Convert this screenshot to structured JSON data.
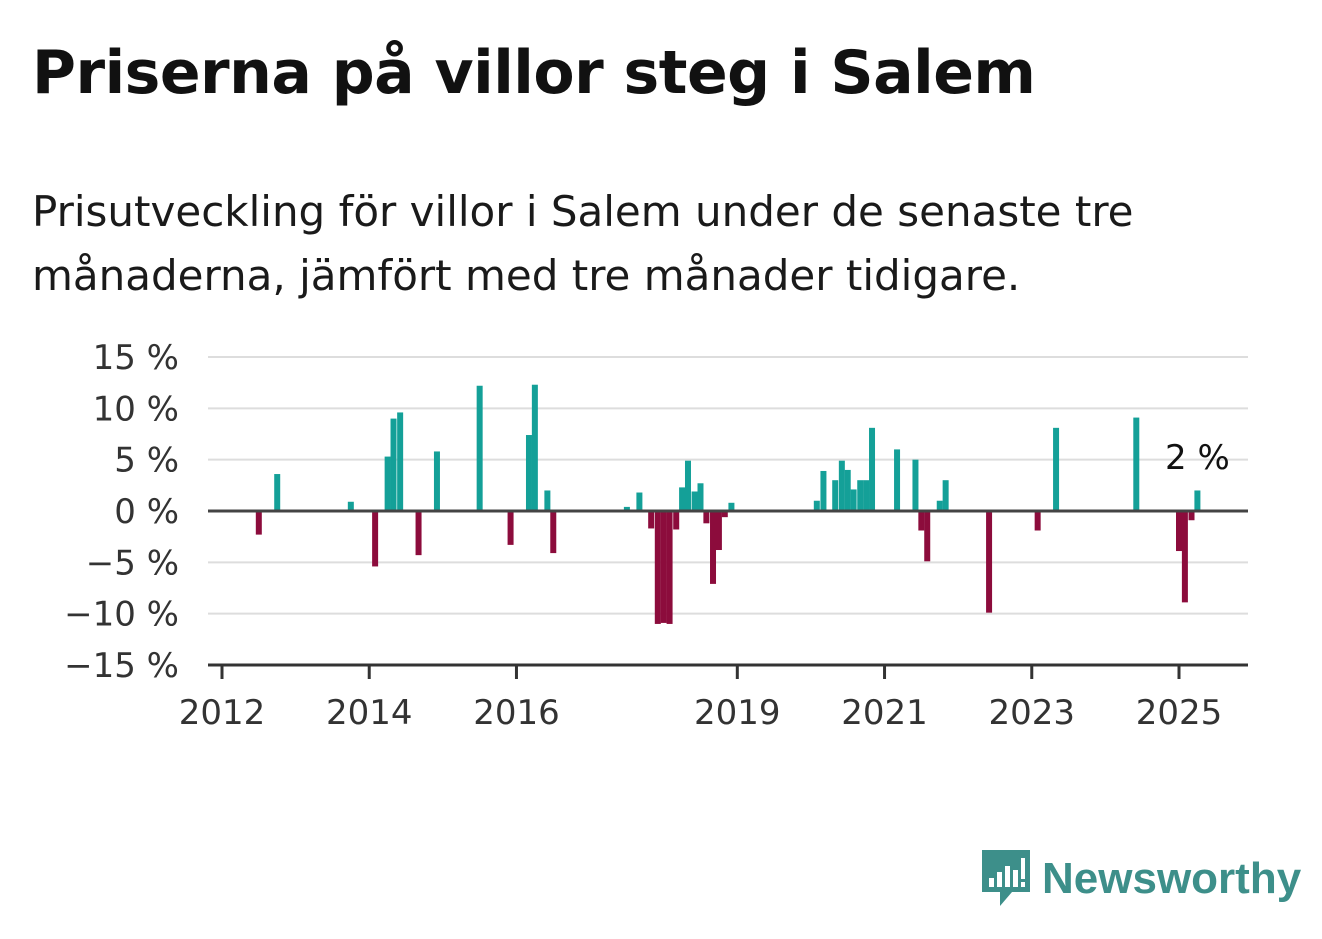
{
  "title": "Priserna på villor steg i Salem",
  "subtitle": "Prisutveckling för villor i Salem under de senaste tre månaderna, jämfört med tre månader tidigare.",
  "brand": {
    "name": "Newsworthy",
    "icon": "bar-chart-speech-icon",
    "color": "#3d8f8a"
  },
  "chart_data": {
    "type": "bar",
    "ylim": [
      -15,
      15
    ],
    "yticks": [
      15,
      10,
      5,
      0,
      -5,
      -10,
      -15
    ],
    "ytick_labels": [
      "15 %",
      "10 %",
      "5 %",
      "0 %",
      "−5 %",
      "−10 %",
      "−15 %"
    ],
    "xlim": [
      2011.9,
      2026.5
    ],
    "xticks": [
      2012,
      2014,
      2016,
      2019,
      2021,
      2023,
      2025
    ],
    "xtick_labels": [
      "2012",
      "2014",
      "2016",
      "2019",
      "2021",
      "2023",
      "2025"
    ],
    "grid": true,
    "colors": {
      "positive": "#14a098",
      "negative": "#8c0c3c",
      "grid": "#dddddd",
      "axis": "#333333"
    },
    "annotation": {
      "text": "2 %",
      "x": 2025.25
    },
    "x": [
      2012.5,
      2012.75,
      2013.75,
      2014.08,
      2014.25,
      2014.33,
      2014.42,
      2014.67,
      2014.92,
      2015.5,
      2015.92,
      2016.17,
      2016.25,
      2016.42,
      2016.5,
      2017.5,
      2017.67,
      2017.83,
      2017.92,
      2018.0,
      2018.08,
      2018.17,
      2018.25,
      2018.33,
      2018.42,
      2018.5,
      2018.58,
      2018.67,
      2018.75,
      2018.83,
      2018.92,
      2020.08,
      2020.17,
      2020.33,
      2020.42,
      2020.5,
      2020.58,
      2020.67,
      2020.75,
      2020.83,
      2021.17,
      2021.42,
      2021.5,
      2021.58,
      2021.75,
      2021.83,
      2022.42,
      2023.08,
      2023.33,
      2024.42,
      2025.0,
      2025.08,
      2025.17,
      2025.25
    ],
    "values": [
      -2.3,
      3.6,
      0.9,
      -5.4,
      5.3,
      9.0,
      9.6,
      -4.3,
      5.8,
      12.2,
      -3.3,
      7.4,
      12.3,
      2.0,
      -4.1,
      0.4,
      1.8,
      -1.7,
      -11.0,
      -10.9,
      -11.0,
      -1.8,
      2.3,
      4.9,
      1.9,
      2.7,
      -1.2,
      -7.1,
      -3.8,
      -0.6,
      0.8,
      1.0,
      3.9,
      3.0,
      4.9,
      4.0,
      2.1,
      3.0,
      3.0,
      8.1,
      6.0,
      5.0,
      -1.9,
      -4.9,
      1.0,
      3.0,
      -9.9,
      -1.9,
      8.1,
      9.1,
      -3.9,
      -8.9,
      -0.9,
      2.0
    ]
  }
}
